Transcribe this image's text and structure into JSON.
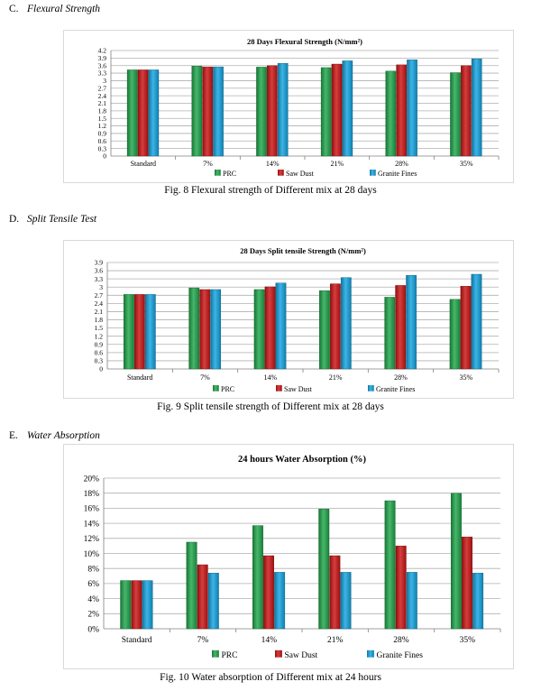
{
  "sections": [
    {
      "letter": "C.",
      "heading": "Flexural Strength",
      "caption": "Fig. 8 Flexural strength of Different mix at 28 days"
    },
    {
      "letter": "D.",
      "heading": "Split Tensile Test",
      "caption": "Fig. 9 Split tensile strength of Different mix at 28 days"
    },
    {
      "letter": "E.",
      "heading": "Water Absorption",
      "caption": "Fig. 10 Water absorption of Different mix at 24 hours"
    }
  ],
  "colors": {
    "PRC": "#1fa64a",
    "Saw Dust": "#cc1414",
    "Granite Fines": "#13a4e0"
  },
  "chart_data": [
    {
      "type": "bar",
      "title": "28 Days Flexural Strength (N/mm²)",
      "categories": [
        "Standard",
        "7%",
        "14%",
        "21%",
        "28%",
        "35%"
      ],
      "series": [
        {
          "name": "PRC",
          "values": [
            3.43,
            3.58,
            3.54,
            3.52,
            3.38,
            3.32
          ]
        },
        {
          "name": "Saw Dust",
          "values": [
            3.43,
            3.55,
            3.6,
            3.66,
            3.63,
            3.6
          ]
        },
        {
          "name": "Granite Fines",
          "values": [
            3.43,
            3.55,
            3.69,
            3.79,
            3.83,
            3.87
          ]
        }
      ],
      "ylim": [
        0,
        4.2
      ],
      "yticks": [
        "0",
        "0.3",
        "0.6",
        "0.9",
        "1.2",
        "1.5",
        "1.8",
        "2.1",
        "2.4",
        "2.7",
        "3",
        "3.3",
        "3.6",
        "3.9",
        "4.2"
      ],
      "grid": true,
      "legend": "bottom"
    },
    {
      "type": "bar",
      "title": "28 Days Split tensile Strength (N/mm²)",
      "categories": [
        "Standard",
        "7%",
        "14%",
        "21%",
        "28%",
        "35%"
      ],
      "series": [
        {
          "name": "PRC",
          "values": [
            2.73,
            2.97,
            2.91,
            2.87,
            2.63,
            2.55
          ]
        },
        {
          "name": "Saw Dust",
          "values": [
            2.73,
            2.91,
            3.01,
            3.12,
            3.06,
            3.03
          ]
        },
        {
          "name": "Granite Fines",
          "values": [
            2.73,
            2.91,
            3.15,
            3.35,
            3.43,
            3.47
          ]
        }
      ],
      "ylim": [
        0,
        3.9
      ],
      "yticks": [
        "0",
        "0.3",
        "0.6",
        "0.9",
        "1.2",
        "1.5",
        "1.8",
        "2.1",
        "2.4",
        "2.7",
        "3",
        "3.3",
        "3.6",
        "3.9"
      ],
      "grid": true,
      "legend": "bottom"
    },
    {
      "type": "bar",
      "title": "24 hours Water Absorption (%)",
      "categories": [
        "Standard",
        "7%",
        "14%",
        "21%",
        "28%",
        "35%"
      ],
      "series": [
        {
          "name": "PRC",
          "values": [
            6.4,
            11.5,
            13.7,
            15.9,
            17.0,
            18.0
          ]
        },
        {
          "name": "Saw Dust",
          "values": [
            6.4,
            8.5,
            9.7,
            9.7,
            11.0,
            12.2
          ]
        },
        {
          "name": "Granite Fines",
          "values": [
            6.4,
            7.4,
            7.5,
            7.5,
            7.5,
            7.4
          ]
        }
      ],
      "ylim": [
        0,
        20
      ],
      "yticks": [
        "0%",
        "2%",
        "4%",
        "6%",
        "8%",
        "10%",
        "12%",
        "14%",
        "16%",
        "18%",
        "20%"
      ],
      "grid": true,
      "legend": "bottom"
    }
  ]
}
